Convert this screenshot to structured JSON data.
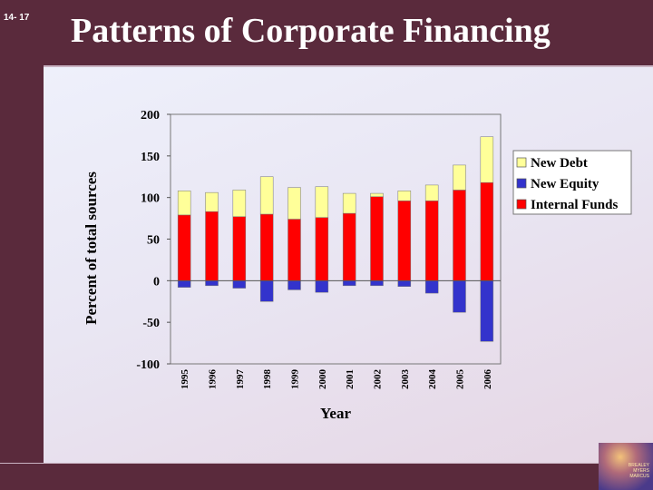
{
  "slide": {
    "number": "14- 17",
    "title": "Patterns of Corporate Financing"
  },
  "logo": {
    "lines": [
      "BREALEY",
      "MYERS",
      "MARCUS"
    ]
  },
  "chart_data": {
    "type": "bar",
    "stacked": true,
    "categories": [
      "1995",
      "1996",
      "1997",
      "1998",
      "1999",
      "2000",
      "2001",
      "2002",
      "2003",
      "2004",
      "2005",
      "2006"
    ],
    "series": [
      {
        "name": "New Debt",
        "color": "#ffff99",
        "values": [
          29,
          23,
          32,
          45,
          38,
          37,
          24,
          4,
          12,
          19,
          30,
          55
        ]
      },
      {
        "name": "New Equity",
        "color": "#3333cc",
        "values": [
          -8,
          -6,
          -9,
          -25,
          -11,
          -14,
          -6,
          -6,
          -7,
          -15,
          -38,
          -73
        ]
      },
      {
        "name": "Internal Funds",
        "color": "#ff0000",
        "values": [
          79,
          83,
          77,
          80,
          74,
          76,
          81,
          101,
          96,
          96,
          109,
          118
        ]
      }
    ],
    "ylabel": "Percent of total sources",
    "xlabel": "Year",
    "ylim": [
      -100,
      200
    ],
    "yticks": [
      200,
      150,
      100,
      50,
      0,
      -50,
      -100
    ],
    "grid": false,
    "legend_position": "right",
    "legend_order": [
      "New Debt",
      "New Equity",
      "Internal Funds"
    ]
  }
}
